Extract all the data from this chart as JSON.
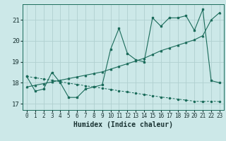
{
  "xlabel": "Humidex (Indice chaleur)",
  "bg_color": "#cce8e8",
  "grid_color": "#b0d0d0",
  "line_color": "#1a6b5a",
  "xlim": [
    -0.5,
    23.5
  ],
  "ylim": [
    16.7,
    21.75
  ],
  "yticks": [
    17,
    18,
    19,
    20,
    21
  ],
  "xticks": [
    0,
    1,
    2,
    3,
    4,
    5,
    6,
    7,
    8,
    9,
    10,
    11,
    12,
    13,
    14,
    15,
    16,
    17,
    18,
    19,
    20,
    21,
    22,
    23
  ],
  "series1_x": [
    0,
    1,
    2,
    3,
    4,
    5,
    6,
    7,
    8,
    9,
    10,
    11,
    12,
    13,
    14,
    15,
    16,
    17,
    18,
    19,
    20,
    21,
    22,
    23
  ],
  "series1_y": [
    18.3,
    17.6,
    17.7,
    18.5,
    18.0,
    17.3,
    17.3,
    17.7,
    17.8,
    17.9,
    19.6,
    20.6,
    19.4,
    19.1,
    19.0,
    21.1,
    20.7,
    21.1,
    21.1,
    21.2,
    20.5,
    21.5,
    18.1,
    18.0
  ],
  "series2_x": [
    0,
    1,
    2,
    3,
    4,
    5,
    6,
    7,
    8,
    9,
    10,
    11,
    12,
    13,
    14,
    15,
    16,
    17,
    18,
    19,
    20,
    21,
    22,
    23
  ],
  "series2_y": [
    17.8,
    17.88,
    17.96,
    18.04,
    18.12,
    18.2,
    18.28,
    18.36,
    18.44,
    18.52,
    18.65,
    18.78,
    18.91,
    19.04,
    19.17,
    19.35,
    19.53,
    19.66,
    19.79,
    19.92,
    20.05,
    20.25,
    21.0,
    21.35
  ],
  "series3_x": [
    0,
    1,
    2,
    3,
    4,
    5,
    6,
    7,
    8,
    9,
    10,
    11,
    12,
    13,
    14,
    15,
    16,
    17,
    18,
    19,
    20,
    21,
    22,
    23
  ],
  "series3_y": [
    18.3,
    18.24,
    18.18,
    18.12,
    18.05,
    17.98,
    17.92,
    17.86,
    17.8,
    17.74,
    17.68,
    17.62,
    17.56,
    17.5,
    17.44,
    17.38,
    17.32,
    17.27,
    17.22,
    17.17,
    17.12,
    17.1,
    17.12,
    17.1
  ],
  "tick_fontsize": 5.5,
  "label_fontsize": 7
}
